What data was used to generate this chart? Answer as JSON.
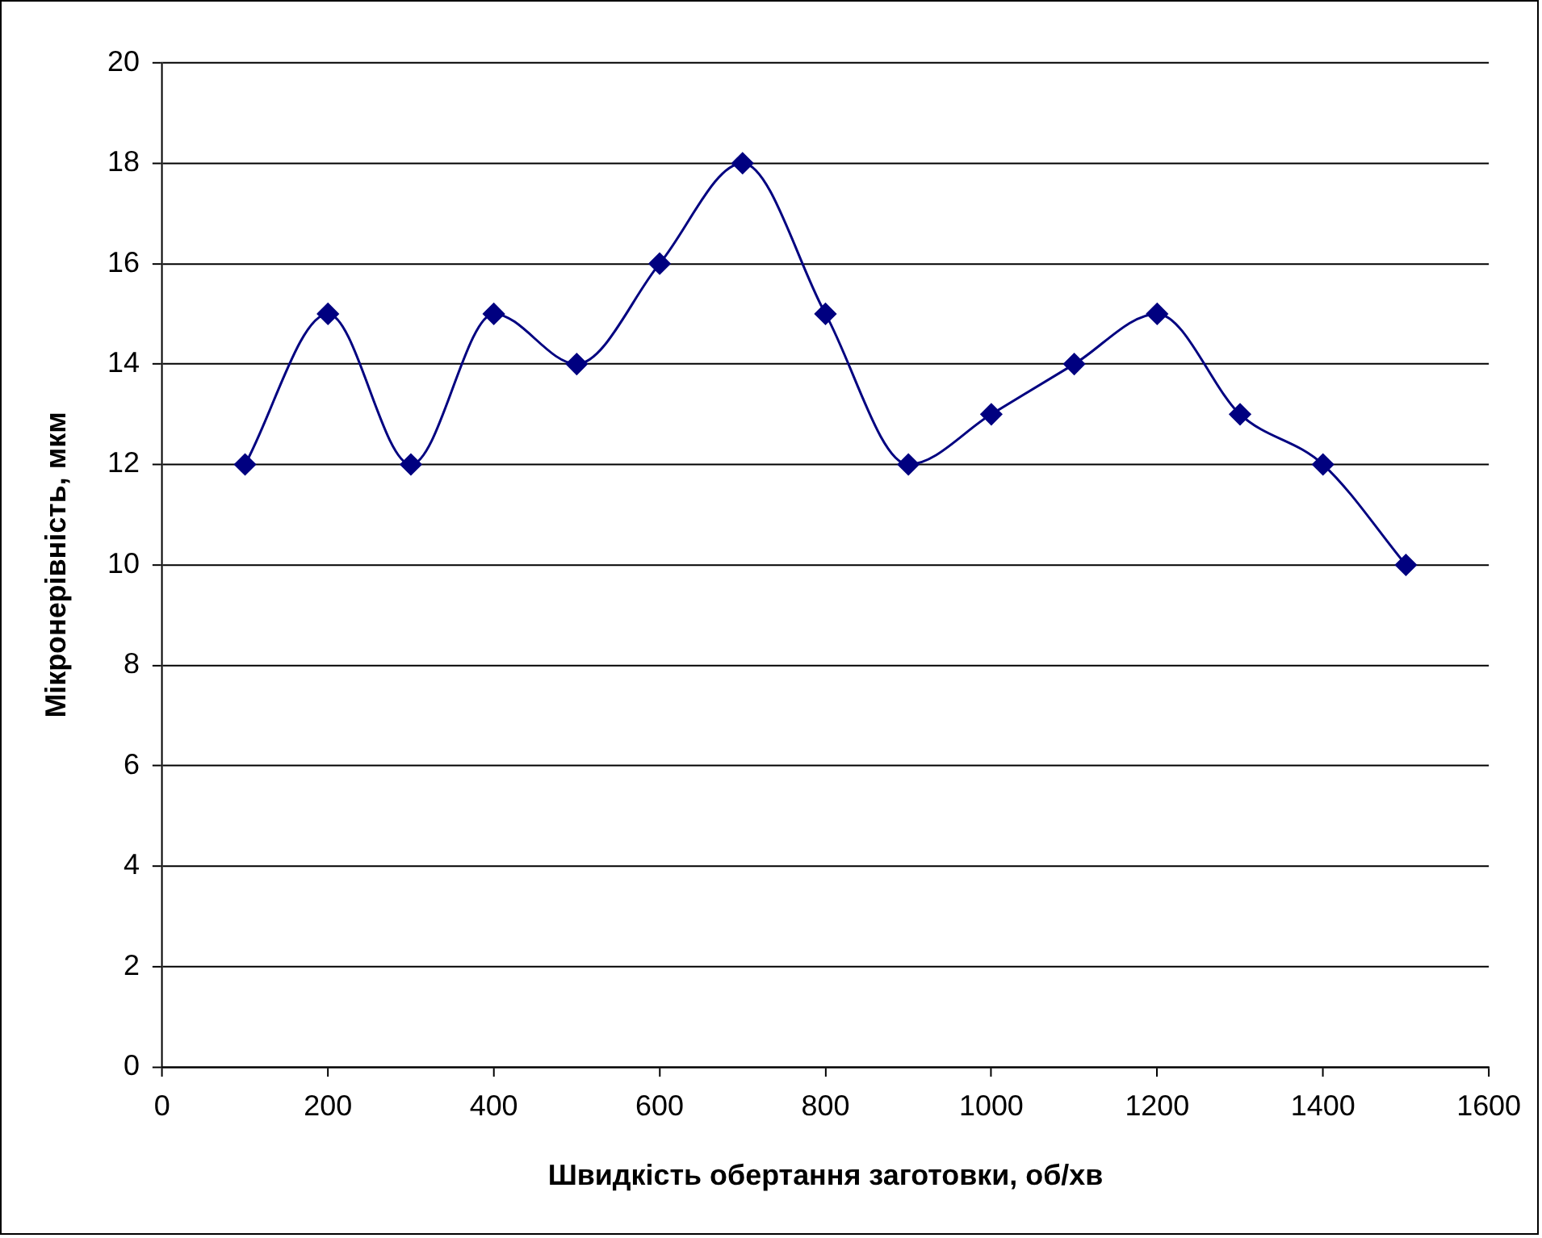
{
  "chart_data": {
    "type": "line",
    "xlabel": "Швидкість обертання заготовки, об/хв",
    "ylabel": "Мікронерівність, мкм",
    "x": [
      100,
      200,
      300,
      400,
      500,
      600,
      700,
      800,
      900,
      1000,
      1100,
      1200,
      1300,
      1400,
      1500
    ],
    "series": [
      {
        "color": "#000080",
        "values": [
          12,
          15,
          12,
          15,
          14,
          16,
          18,
          15,
          12,
          13,
          14,
          15,
          13,
          12,
          10
        ]
      }
    ],
    "xlim": [
      0,
      1600
    ],
    "xticks": [
      0,
      200,
      400,
      600,
      800,
      1000,
      1200,
      1400,
      1600
    ],
    "ylim": [
      0,
      20
    ],
    "yticks": [
      0,
      2,
      4,
      6,
      8,
      10,
      12,
      14,
      16,
      18,
      20
    ],
    "grid": "y",
    "legend": false,
    "marker": "diamond",
    "line_style": "solid"
  }
}
